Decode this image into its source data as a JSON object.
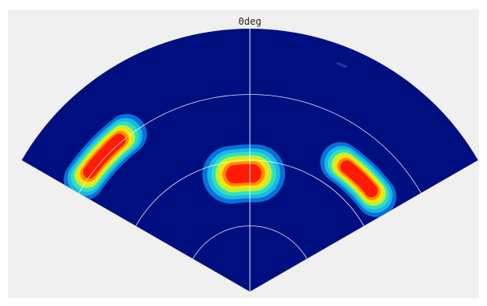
{
  "chart_data": {
    "type": "heatmap",
    "title": "",
    "projection": "polar-sector",
    "angle_unit": "deg",
    "angle_range": [
      -60,
      60
    ],
    "range_rings": 4,
    "grid": true,
    "angle_tick_labels": [
      "0deg"
    ],
    "colormap": "jet",
    "targets": [
      {
        "azimuth_deg": -47,
        "range_frac": 0.76,
        "azimuth_span_deg": 18,
        "range_span_frac": 0.07,
        "peak": 1.0
      },
      {
        "azimuth_deg": -3,
        "range_frac": 0.45,
        "azimuth_span_deg": 12,
        "range_span_frac": 0.1,
        "peak": 1.0
      },
      {
        "azimuth_deg": 44,
        "range_frac": 0.6,
        "azimuth_span_deg": 18,
        "range_span_frac": 0.07,
        "peak": 1.0
      },
      {
        "azimuth_deg": 22,
        "range_frac": 0.93,
        "azimuth_span_deg": 2,
        "range_span_frac": 0.01,
        "peak": 0.08
      }
    ]
  },
  "colors": {
    "background": "#000f80",
    "grid": "#ffffff",
    "panel": "#f0f0f0"
  }
}
